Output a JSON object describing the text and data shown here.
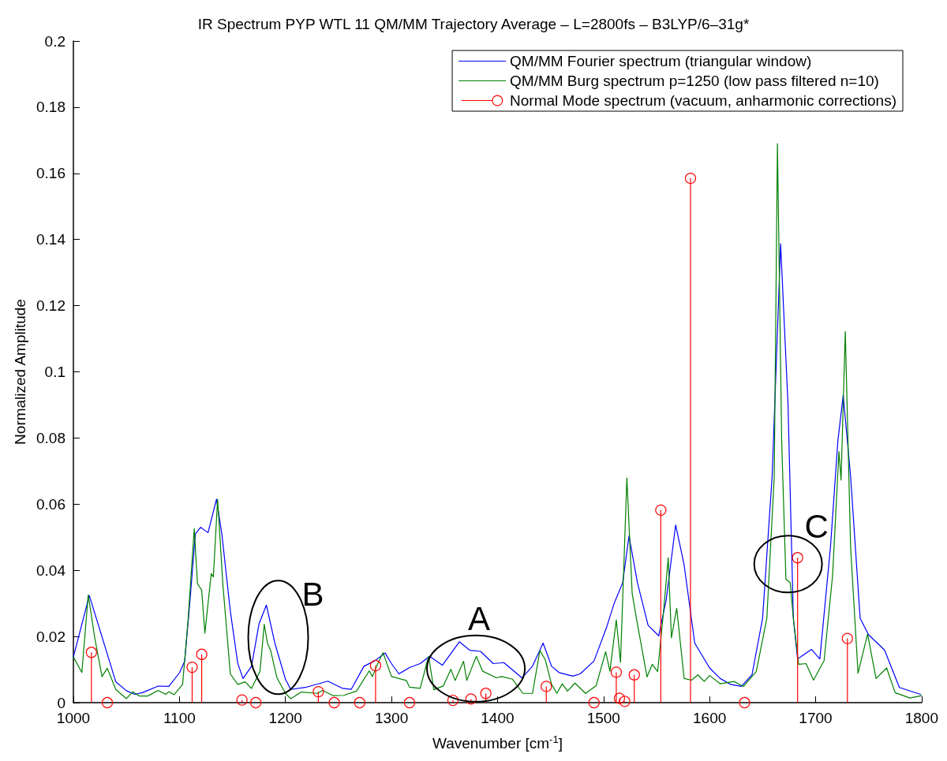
{
  "chart_data": {
    "type": "line",
    "title": "IR Spectrum PYP WTL 11 QM/MM Trajectory Average – L=2800fs – B3LYP/6–31g*",
    "xlabel": "Wavenumber [cm$^{-1}$]",
    "ylabel": "Normalized Amplitude",
    "xlim": [
      1000,
      1800
    ],
    "xticks": [
      1000,
      1100,
      1200,
      1300,
      1400,
      1500,
      1600,
      1700,
      1800
    ],
    "ylim": [
      0,
      0.2
    ],
    "yticks": [
      0,
      0.02,
      0.04,
      0.06,
      0.08,
      0.1,
      0.12,
      0.14,
      0.16,
      0.18,
      0.2
    ],
    "legend": "top right",
    "line_style": "solid",
    "annotations": [
      {
        "text": "A",
        "x": 1364,
        "y": 0.0184
      },
      {
        "text": "B",
        "x": 1182,
        "y": 0.0295
      },
      {
        "text": "C",
        "x": 1683,
        "y": 0.0438
      }
    ],
    "series": [
      {
        "name": "QM/MM Fourier spectrum (triangular window)",
        "color": "#0000ff",
        "x": [
          1000,
          1015,
          1040,
          1050,
          1058,
          1065,
          1080,
          1090,
          1100,
          1105,
          1110,
          1115,
          1120,
          1127,
          1135,
          1140,
          1148,
          1155,
          1160,
          1168,
          1175,
          1182,
          1190,
          1200,
          1205,
          1220,
          1240,
          1254,
          1262,
          1274,
          1284,
          1294,
          1300,
          1307,
          1317,
          1327,
          1336,
          1348,
          1364,
          1374,
          1384,
          1396,
          1406,
          1423,
          1433,
          1443,
          1451,
          1458,
          1471,
          1478,
          1491,
          1503,
          1510,
          1518,
          1524,
          1532,
          1542,
          1552,
          1559,
          1568,
          1576,
          1586,
          1600,
          1610,
          1620,
          1630,
          1640,
          1650,
          1659,
          1667,
          1674,
          1679,
          1683,
          1696,
          1704,
          1714,
          1721,
          1726,
          1733,
          1742,
          1750,
          1765,
          1779,
          1799
        ],
        "values": [
          0.0138,
          0.0324,
          0.0063,
          0.0036,
          0.0025,
          0.003,
          0.005,
          0.0049,
          0.009,
          0.0126,
          0.031,
          0.051,
          0.053,
          0.0514,
          0.0615,
          0.051,
          0.0277,
          0.0119,
          0.0073,
          0.011,
          0.0237,
          0.0295,
          0.018,
          0.0071,
          0.004,
          0.0047,
          0.0065,
          0.0043,
          0.004,
          0.011,
          0.0126,
          0.015,
          0.0118,
          0.0087,
          0.0106,
          0.0118,
          0.014,
          0.0113,
          0.0184,
          0.0158,
          0.0155,
          0.0118,
          0.0121,
          0.0075,
          0.011,
          0.018,
          0.011,
          0.0091,
          0.008,
          0.0087,
          0.0126,
          0.0229,
          0.03,
          0.0362,
          0.0504,
          0.0362,
          0.0234,
          0.0202,
          0.0309,
          0.0537,
          0.0416,
          0.018,
          0.0105,
          0.0073,
          0.0055,
          0.0049,
          0.0084,
          0.0255,
          0.0684,
          0.1387,
          0.0899,
          0.0255,
          0.0132,
          0.0161,
          0.0132,
          0.047,
          0.0791,
          0.0929,
          0.0684,
          0.0255,
          0.0205,
          0.0159,
          0.0046,
          0.0025
        ]
      },
      {
        "name": "QM/MM Burg spectrum p=1250 (low pass filtered n=10)",
        "color": "#008000",
        "x": [
          1000,
          1008,
          1014,
          1020,
          1027,
          1032,
          1040,
          1050,
          1056,
          1062,
          1070,
          1080,
          1087,
          1090,
          1095,
          1103,
          1108,
          1114,
          1117,
          1121,
          1124,
          1130,
          1132,
          1136,
          1141,
          1148,
          1155,
          1162,
          1168,
          1176,
          1180,
          1183,
          1186,
          1192,
          1200,
          1205,
          1215,
          1230,
          1235,
          1245,
          1255,
          1267,
          1279,
          1282,
          1287,
          1292,
          1300,
          1314,
          1317,
          1327,
          1335,
          1340,
          1349,
          1356,
          1360,
          1368,
          1371,
          1380,
          1386,
          1399,
          1404,
          1414,
          1424,
          1433,
          1440,
          1445,
          1451,
          1456,
          1461,
          1466,
          1473,
          1483,
          1493,
          1502,
          1506,
          1512,
          1516,
          1522,
          1527,
          1531,
          1541,
          1546,
          1551,
          1556,
          1561,
          1564,
          1569,
          1576,
          1583,
          1589,
          1595,
          1600,
          1610,
          1623,
          1632,
          1644,
          1654,
          1661,
          1664,
          1668,
          1672,
          1676,
          1679,
          1684,
          1691,
          1698,
          1708,
          1716,
          1722,
          1724,
          1728,
          1733,
          1740,
          1749,
          1757,
          1767,
          1775,
          1789,
          1800
        ],
        "values": [
          0.0138,
          0.0091,
          0.0326,
          0.0198,
          0.0079,
          0.0104,
          0.004,
          0.0012,
          0.0033,
          0.002,
          0.002,
          0.0037,
          0.0025,
          0.0033,
          0.0024,
          0.0055,
          0.0245,
          0.0526,
          0.036,
          0.034,
          0.021,
          0.039,
          0.038,
          0.0615,
          0.0356,
          0.0087,
          0.0055,
          0.0063,
          0.0043,
          0.0095,
          0.0237,
          0.018,
          0.0158,
          0.0075,
          0.0028,
          0.0012,
          0.0032,
          0.0028,
          0.0037,
          0.0021,
          0.0022,
          0.0035,
          0.0096,
          0.0079,
          0.0118,
          0.0151,
          0.0079,
          0.0067,
          0.0047,
          0.0043,
          0.014,
          0.0039,
          0.0051,
          0.0101,
          0.0067,
          0.0125,
          0.0067,
          0.014,
          0.0095,
          0.0075,
          0.0079,
          0.0071,
          0.0028,
          0.0028,
          0.0158,
          0.013,
          0.0055,
          0.0028,
          0.0057,
          0.0035,
          0.0059,
          0.0028,
          0.0051,
          0.0154,
          0.0095,
          0.025,
          0.0122,
          0.0679,
          0.033,
          0.0255,
          0.0078,
          0.0116,
          0.0094,
          0.0255,
          0.0438,
          0.0196,
          0.0285,
          0.0073,
          0.0068,
          0.0084,
          0.0064,
          0.0082,
          0.0057,
          0.0064,
          0.0049,
          0.0094,
          0.0255,
          0.0684,
          0.169,
          0.079,
          0.0373,
          0.0363,
          0.0255,
          0.0116,
          0.0118,
          0.0068,
          0.0127,
          0.0384,
          0.0759,
          0.0673,
          0.1122,
          0.047,
          0.0089,
          0.0207,
          0.0073,
          0.0105,
          0.003,
          0.0014,
          0.0021
        ]
      },
      {
        "name": "Normal Mode spectrum (vacuum, anharmonic corrections)",
        "type": "lollipop",
        "color": "#ff0000",
        "marker": "circle",
        "x": [
          1017,
          1032,
          1112,
          1121,
          1159,
          1172,
          1231,
          1246,
          1270,
          1285,
          1317,
          1358,
          1375,
          1389,
          1446,
          1491,
          1512,
          1515,
          1520,
          1529,
          1554,
          1582,
          1633,
          1683,
          1730
        ],
        "values": [
          0.0152,
          0,
          0.0107,
          0.0146,
          0.0008,
          0,
          0.0033,
          0,
          0,
          0.0112,
          0,
          0.0007,
          0.0011,
          0.0028,
          0.0049,
          0,
          0.0092,
          0.0013,
          0.0004,
          0.0084,
          0.0582,
          0.1585,
          0,
          0.0438,
          0.0194
        ]
      }
    ]
  }
}
